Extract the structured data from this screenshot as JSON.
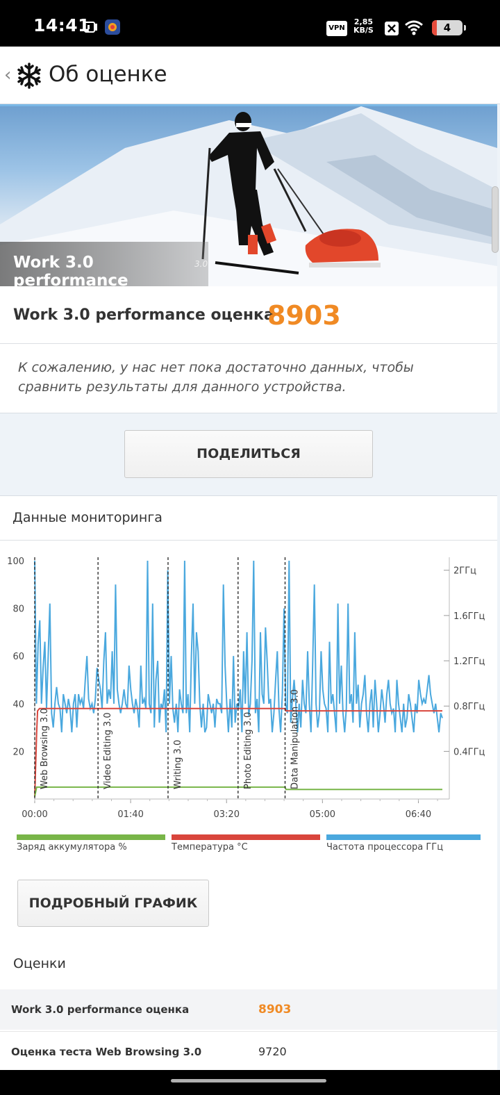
{
  "status_bar": {
    "time": "14:41",
    "vpn": "VPN",
    "speed_value": "2,85",
    "speed_unit": "KB/S",
    "battery": "4"
  },
  "header": {
    "back": "‹",
    "title": "Об оценке"
  },
  "hero": {
    "name": "Work 3.0 performance",
    "version": "3.0"
  },
  "score_card": {
    "label": "Work 3.0 performance оценка",
    "score": "8903",
    "note": "К сожалению, у нас нет пока достаточно данных, чтобы сравнить результаты для данного устройства."
  },
  "share_button": "ПОДЕЛИТЬСЯ",
  "monitoring": {
    "title": "Данные мониторинга",
    "legend": [
      {
        "label": "Заряд аккумулятора %",
        "color": "#78b548"
      },
      {
        "label": "Температура °C",
        "color": "#d9453c"
      },
      {
        "label": "Частота процессора ГГц",
        "color": "#4aa8de"
      }
    ]
  },
  "chart_data": {
    "type": "line",
    "x_ticks": [
      "00:00",
      "01:40",
      "03:20",
      "05:00",
      "06:40"
    ],
    "y_left_ticks": [
      "100",
      "80",
      "60",
      "40",
      "20"
    ],
    "y_right_ticks": [
      "2ГГц",
      "1.6ГГц",
      "1.2ГГц",
      "0.8ГГц",
      "0.4ГГц"
    ],
    "ylim": [
      0,
      100
    ],
    "xlim_minutes": [
      0,
      425
    ],
    "phases": [
      {
        "label": "Web Browsing 3.0",
        "start_min": 0
      },
      {
        "label": "Video Editing 3.0",
        "start_min": 66
      },
      {
        "label": "Writing 3.0",
        "start_min": 139
      },
      {
        "label": "Photo Editing 3.0",
        "start_min": 212
      },
      {
        "label": "Data Manipulation 3.0",
        "start_min": 261
      }
    ],
    "series": [
      {
        "name": "Заряд аккумулятора %",
        "color": "#78b548",
        "points": [
          [
            0,
            1
          ],
          [
            2,
            5
          ],
          [
            140,
            5
          ],
          [
            261,
            5
          ],
          [
            262,
            4
          ],
          [
            425,
            4
          ]
        ]
      },
      {
        "name": "Температура °C",
        "color": "#d9453c",
        "points": [
          [
            0,
            1
          ],
          [
            2,
            28
          ],
          [
            3,
            37
          ],
          [
            5,
            38
          ],
          [
            261,
            38
          ],
          [
            262,
            37
          ],
          [
            425,
            37
          ]
        ]
      },
      {
        "name": "Частота процессора ГГц",
        "color": "#4aa8de",
        "values": [
          100,
          40,
          65,
          75,
          40,
          55,
          66,
          38,
          60,
          82,
          36,
          30,
          40,
          47,
          40,
          38,
          28,
          44,
          40,
          36,
          42,
          38,
          28,
          40,
          44,
          30,
          44,
          40,
          42,
          38,
          50,
          60,
          42,
          38,
          40,
          36,
          42,
          55,
          50,
          46,
          38,
          58,
          70,
          40,
          46,
          42,
          62,
          40,
          90,
          46,
          40,
          36,
          40,
          46,
          40,
          38,
          56,
          46,
          40,
          36,
          42,
          38,
          30,
          56,
          40,
          42,
          38,
          100,
          40,
          36,
          82,
          30,
          50,
          58,
          32,
          40,
          38,
          46,
          28,
          96,
          40,
          60,
          38,
          32,
          40,
          28,
          46,
          40,
          36,
          100,
          36,
          44,
          28,
          60,
          82,
          40,
          70,
          62,
          40,
          30,
          40,
          28,
          30,
          44,
          40,
          36,
          40,
          30,
          42,
          40,
          40,
          36,
          90,
          56,
          40,
          28,
          42,
          30,
          60,
          32,
          40,
          38,
          46,
          28,
          62,
          40,
          70,
          35,
          40,
          58,
          100,
          36,
          42,
          28,
          70,
          44,
          40,
          72,
          58,
          40,
          42,
          28,
          36,
          50,
          62,
          38,
          28,
          44,
          80,
          40,
          36,
          100,
          32,
          42,
          50,
          40,
          28,
          40,
          30,
          50,
          40,
          36,
          62,
          40,
          28,
          56,
          90,
          40,
          30,
          36,
          62,
          46,
          40,
          38,
          28,
          66,
          40,
          44,
          36,
          28,
          82,
          40,
          56,
          36,
          28,
          38,
          82,
          40,
          44,
          32,
          70,
          40,
          48,
          30,
          40,
          44,
          52,
          36,
          28,
          40,
          46,
          30,
          50,
          40,
          28,
          36,
          46,
          40,
          32,
          44,
          50,
          40,
          36,
          38,
          28,
          50,
          40,
          34,
          28,
          40,
          30,
          34,
          44,
          40,
          34,
          28,
          40,
          36,
          50,
          44,
          40,
          42,
          40,
          46,
          52,
          44,
          40,
          36,
          40,
          34,
          28,
          36,
          34
        ]
      }
    ]
  },
  "detail_button": "ПОДРОБНЫЙ ГРАФИК",
  "scores": {
    "title": "Оценки",
    "rows": [
      {
        "label": "Work 3.0 performance оценка",
        "value": "8903"
      },
      {
        "label": "Оценка теста Web Browsing 3.0",
        "value": "9720"
      }
    ]
  }
}
